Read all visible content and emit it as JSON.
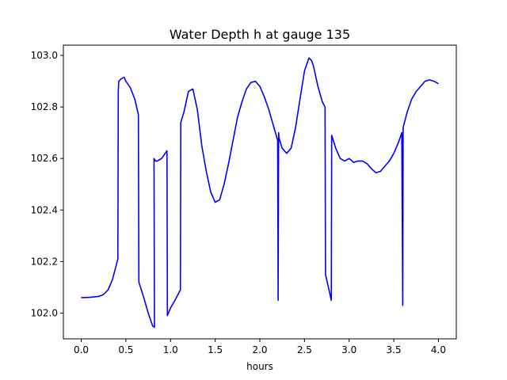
{
  "chart_data": {
    "type": "line",
    "title": "Water Depth h at gauge 135",
    "xlabel": "hours",
    "ylabel": "",
    "xlim": [
      -0.2,
      4.2
    ],
    "ylim": [
      101.9,
      103.04
    ],
    "xticks": [
      0.0,
      0.5,
      1.0,
      1.5,
      2.0,
      2.5,
      3.0,
      3.5,
      4.0
    ],
    "xtick_labels": [
      "0.0",
      "0.5",
      "1.0",
      "1.5",
      "2.0",
      "2.5",
      "3.0",
      "3.5",
      "4.0"
    ],
    "yticks": [
      102.0,
      102.2,
      102.4,
      102.6,
      102.8,
      103.0
    ],
    "ytick_labels": [
      "102.0",
      "102.2",
      "102.4",
      "102.6",
      "102.8",
      "103.0"
    ],
    "grid": false,
    "series": [
      {
        "color": "#0000ff",
        "x": [
          0.0,
          0.1,
          0.2,
          0.25,
          0.3,
          0.35,
          0.38,
          0.41,
          0.415,
          0.42,
          0.45,
          0.48,
          0.5,
          0.55,
          0.6,
          0.64,
          0.645,
          0.7,
          0.75,
          0.8,
          0.82,
          0.815,
          0.825,
          0.83,
          0.85,
          0.9,
          0.96,
          0.965,
          1.0,
          1.05,
          1.11,
          1.115,
          1.15,
          1.2,
          1.25,
          1.3,
          1.35,
          1.4,
          1.45,
          1.5,
          1.55,
          1.6,
          1.65,
          1.7,
          1.75,
          1.8,
          1.85,
          1.9,
          1.95,
          2.0,
          2.05,
          2.1,
          2.15,
          2.2,
          2.205,
          2.21,
          2.215,
          2.25,
          2.3,
          2.35,
          2.4,
          2.45,
          2.5,
          2.55,
          2.58,
          2.6,
          2.65,
          2.7,
          2.73,
          2.735,
          2.8,
          2.805,
          2.85,
          2.9,
          2.95,
          3.0,
          3.05,
          3.1,
          3.15,
          3.2,
          3.25,
          3.3,
          3.35,
          3.4,
          3.45,
          3.5,
          3.55,
          3.59,
          3.6,
          3.605,
          3.65,
          3.7,
          3.75,
          3.8,
          3.85,
          3.9,
          3.95,
          4.0
        ],
        "y": [
          102.06,
          102.061,
          102.065,
          102.072,
          102.09,
          102.13,
          102.17,
          102.21,
          102.86,
          102.9,
          102.91,
          102.915,
          102.9,
          102.875,
          102.83,
          102.77,
          102.12,
          102.06,
          102.0,
          101.95,
          101.945,
          102.6,
          102.595,
          102.59,
          102.59,
          102.6,
          102.63,
          101.99,
          102.02,
          102.05,
          102.09,
          102.74,
          102.78,
          102.86,
          102.87,
          102.79,
          102.65,
          102.55,
          102.47,
          102.43,
          102.44,
          102.5,
          102.58,
          102.67,
          102.76,
          102.82,
          102.87,
          102.895,
          102.9,
          102.88,
          102.84,
          102.79,
          102.73,
          102.67,
          102.05,
          102.7,
          102.68,
          102.64,
          102.62,
          102.64,
          102.72,
          102.83,
          102.94,
          102.99,
          102.98,
          102.96,
          102.88,
          102.82,
          102.8,
          102.15,
          102.05,
          102.69,
          102.64,
          102.6,
          102.59,
          102.6,
          102.585,
          102.59,
          102.59,
          102.58,
          102.56,
          102.545,
          102.55,
          102.57,
          102.59,
          102.62,
          102.66,
          102.7,
          102.03,
          102.72,
          102.78,
          102.83,
          102.86,
          102.88,
          102.9,
          102.905,
          102.9,
          102.89
        ]
      }
    ]
  }
}
